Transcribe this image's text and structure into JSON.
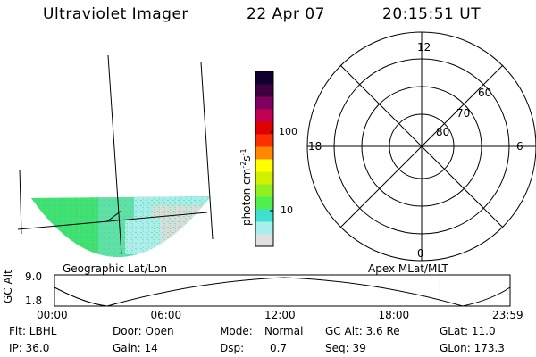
{
  "header": {
    "instrument": "Ultraviolet Imager",
    "date": "22 Apr 07",
    "time": "20:15:51 UT"
  },
  "colorbar": {
    "label": "photon cm",
    "label_sup1": "-2",
    "label_mid": "s",
    "label_sup2": "-1",
    "tick_100": "100",
    "tick_10": "10",
    "colors": [
      "#e0e0e0",
      "#a8f0f0",
      "#40e0d0",
      "#50f050",
      "#90f020",
      "#d0f000",
      "#ffff00",
      "#ff8800",
      "#ff3000",
      "#e00000",
      "#c00050",
      "#800060",
      "#400040",
      "#100030"
    ]
  },
  "panels": {
    "geo_label": "Geographic Lat/Lon",
    "apex_label": "Apex MLat/MLT"
  },
  "polar": {
    "mlt_12": "12",
    "mlt_18": "18",
    "mlt_6": "6",
    "mlt_0": "0",
    "lat_60": "60",
    "lat_70": "70",
    "lat_80": "80"
  },
  "orbit": {
    "ylabel": "GC Alt",
    "y_top": "9.0",
    "y_bottom": "1.8",
    "x_ticks": [
      "00:00",
      "06:00",
      "12:00",
      "18:00",
      "23:59"
    ],
    "current_time_fraction": 0.846,
    "marker_color": "#e00000"
  },
  "footer": {
    "row1": {
      "filter": "Flt: LBHL",
      "door": "Door: Open",
      "mode_label": "Mode:",
      "mode_value": "Normal",
      "gcalt": "GC Alt: 3.6 Re",
      "glat": "GLat:  11.0"
    },
    "row2": {
      "ip": "IP: 36.0",
      "gain": "Gain: 14",
      "dsp_label": "Dsp:",
      "dsp_value": "0.7",
      "seq": "Seq: 39",
      "glon": "GLon: 173.3"
    }
  }
}
